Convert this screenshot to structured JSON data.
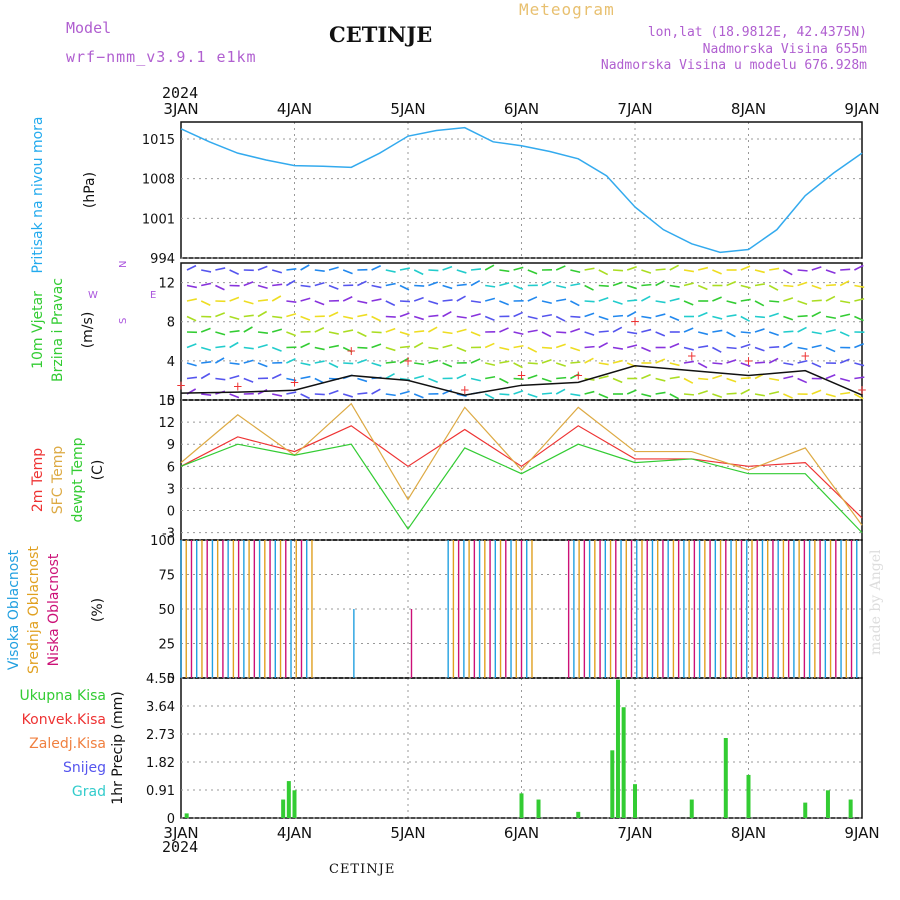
{
  "header": {
    "model_label": "Model",
    "model_name": "wrf−nmm_v3.9.1  e1km",
    "station": "CETINJE",
    "meteogram": "Meteogram",
    "lonlat": "lon,lat (18.9812E, 42.4375N)",
    "altitude": "Nadmorska Visina 655m",
    "model_altitude": "Nadmorska Visina u modelu 676.928m"
  },
  "year_top": "2024",
  "year_bottom": "2024",
  "footer_station": "CETINJE",
  "made_by": "made by Angel",
  "dates": [
    "3JAN",
    "4JAN",
    "5JAN",
    "6JAN",
    "7JAN",
    "8JAN",
    "9JAN"
  ],
  "panels": {
    "pressure": {
      "label_main": "Pritisak na nivou mora",
      "unit": "(hPa)",
      "ticks": [
        "1015",
        "1008",
        "1001",
        "994"
      ]
    },
    "wind": {
      "label_main": "10m Vjetar",
      "label_sub": "Brzina i Pravac",
      "unit": "(m/s)",
      "ticks": [
        "12",
        "8",
        "4",
        "0"
      ],
      "compass_n": "N",
      "compass_w": "W",
      "compass_e": "E",
      "compass_s": "S"
    },
    "temp": {
      "label_t2": "2m Temp",
      "label_sfc": "SFC Temp",
      "label_dew": "dewpt Temp",
      "unit": "(C)",
      "ticks": [
        "15",
        "12",
        "9",
        "6",
        "3",
        "0",
        "-3"
      ]
    },
    "cloud": {
      "label_high": "Visoka Oblacnost",
      "label_mid": "Srednja Oblacnost",
      "label_low": "Niska Oblacnost",
      "unit": "(%)",
      "ticks": [
        "100",
        "75",
        "50",
        "25",
        "0"
      ]
    },
    "precip": {
      "label": "1hr Precip",
      "unit": "(mm)",
      "ticks": [
        "4.55",
        "3.64",
        "2.73",
        "1.82",
        "0.91",
        "0"
      ],
      "legend": [
        {
          "text": "Ukupna Kisa",
          "color": "#33cc33"
        },
        {
          "text": "Konvek.Kisa",
          "color": "#ee3333"
        },
        {
          "text": "Zaledj.Kisa",
          "color": "#f08040"
        },
        {
          "text": "Snijeg",
          "color": "#5555ee"
        },
        {
          "text": "Grad",
          "color": "#33cccc"
        }
      ]
    }
  },
  "colors": {
    "pressure": "#33aaee",
    "t2": "#ee3333",
    "sfc": "#ddaa44",
    "dew": "#33cc33",
    "wind_speed": "#111111",
    "gust": "#ee3333",
    "high": "#22a0e0",
    "mid": "#e0a020",
    "low": "#cc1177",
    "precip_total": "#33cc33",
    "precip_conv": "#cc3333"
  },
  "chart_data": [
    {
      "type": "line",
      "title": "",
      "ylabel": "Pritisak na nivou mora (hPa)",
      "x": [
        0,
        0.25,
        0.5,
        0.75,
        1,
        1.25,
        1.5,
        1.75,
        2,
        2.25,
        2.5,
        2.75,
        3,
        3.25,
        3.5,
        3.75,
        4,
        4.25,
        4.5,
        4.75,
        5,
        5.25,
        5.5,
        5.75,
        6
      ],
      "series": [
        {
          "values": [
            1016.8,
            1014.5,
            1012.5,
            1011.3,
            1010.3,
            1010.2,
            1010,
            1012.5,
            1015.5,
            1016.5,
            1017,
            1014.5,
            1013.8,
            1012.8,
            1011.5,
            1008.5,
            1003,
            999,
            996.5,
            995,
            995.5,
            999,
            1005,
            1009,
            1012.5
          ]
        }
      ],
      "ylim": [
        994,
        1018
      ]
    },
    {
      "type": "line",
      "title": "",
      "ylabel": "10m Vjetar Brzina i Pravac (m/s)",
      "x": [
        0,
        0.5,
        1,
        1.5,
        2,
        2.5,
        3,
        3.5,
        4,
        4.5,
        5,
        5.5,
        6
      ],
      "series": [
        {
          "name": "speed",
          "values": [
            0.7,
            0.8,
            1.0,
            2.5,
            2.0,
            0.5,
            1.5,
            1.8,
            3.5,
            3.0,
            2.5,
            3.0,
            0.5
          ]
        },
        {
          "name": "gust",
          "values": [
            1.5,
            1.4,
            1.8,
            5.0,
            4.0,
            1.0,
            2.5,
            2.5,
            8.0,
            4.5,
            4.0,
            4.5,
            1.0
          ]
        }
      ],
      "ylim": [
        0,
        14
      ]
    },
    {
      "type": "line",
      "title": "",
      "ylabel": "Temp (C)",
      "x": [
        0,
        0.5,
        1,
        1.5,
        2,
        2.5,
        3,
        3.5,
        4,
        4.5,
        5,
        5.5,
        6
      ],
      "series": [
        {
          "name": "2m Temp",
          "values": [
            6,
            10,
            8,
            11.5,
            6,
            11,
            6,
            11.5,
            7,
            7,
            6,
            6.5,
            -1
          ]
        },
        {
          "name": "SFC Temp",
          "values": [
            6.5,
            13,
            7.5,
            14.5,
            1.5,
            14,
            5.5,
            14,
            8,
            8,
            5.5,
            8.5,
            -2
          ]
        },
        {
          "name": "dewpt Temp",
          "values": [
            6,
            9,
            7.5,
            9,
            -2.5,
            8.5,
            5,
            9,
            6.5,
            7,
            5,
            5,
            -3
          ]
        }
      ],
      "ylim": [
        -4,
        15
      ]
    },
    {
      "type": "bar",
      "title": "",
      "ylabel": "Oblacnost (%)",
      "x": [
        0,
        1,
        2,
        3,
        4,
        5,
        6
      ],
      "series": [
        {
          "name": "Visoka Oblacnost",
          "values": [
            100,
            0,
            0,
            100,
            100,
            100,
            100
          ]
        },
        {
          "name": "Srednja Oblacnost",
          "values": [
            100,
            50,
            0,
            100,
            100,
            100,
            100
          ]
        },
        {
          "name": "Niska Oblacnost",
          "values": [
            100,
            80,
            0,
            100,
            100,
            100,
            100
          ]
        }
      ],
      "ylim": [
        0,
        100
      ]
    },
    {
      "type": "bar",
      "title": "",
      "ylabel": "1hr Precip (mm)",
      "x": [
        0.05,
        0.9,
        0.95,
        1.0,
        3.0,
        3.15,
        3.5,
        3.8,
        3.85,
        3.9,
        4.0,
        4.5,
        4.8,
        5.0,
        5.5,
        5.7,
        5.9
      ],
      "series": [
        {
          "name": "Ukupna Kisa",
          "values": [
            0.15,
            0.6,
            1.2,
            0.9,
            0.8,
            0.6,
            0.2,
            2.2,
            4.5,
            3.6,
            1.1,
            0.6,
            2.6,
            1.4,
            0.5,
            0.9,
            0.6
          ]
        }
      ],
      "ylim": [
        0,
        4.55
      ]
    }
  ]
}
